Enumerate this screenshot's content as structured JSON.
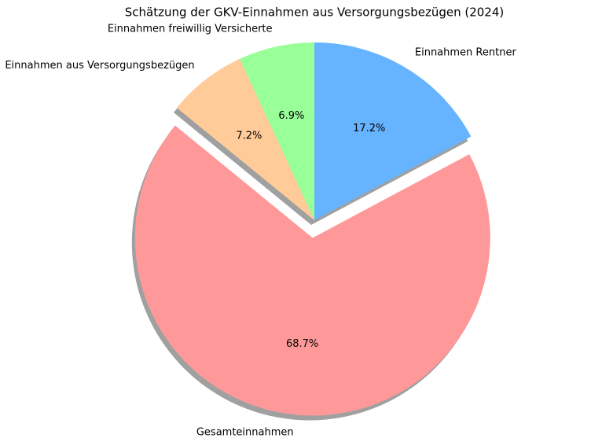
{
  "chart_data": {
    "type": "pie",
    "title": "Schätzung der GKV-Einnahmen aus Versorgungsbezügen (2024)",
    "categories": [
      "Einnahmen freiwillig Versicherte",
      "Einnahmen aus Versorgungsbezügen",
      "Gesamteinnahmen",
      "Einnahmen Rentner"
    ],
    "values": [
      6.9,
      7.2,
      68.7,
      17.2
    ],
    "value_labels": [
      "6.9%",
      "7.2%",
      "68.7%",
      "17.2%"
    ],
    "colors": [
      "#99ff99",
      "#ffcc99",
      "#ff9999",
      "#66b3ff"
    ],
    "explode": [
      0,
      0,
      0.1,
      0
    ],
    "start_angle": 90,
    "shadow": true
  }
}
